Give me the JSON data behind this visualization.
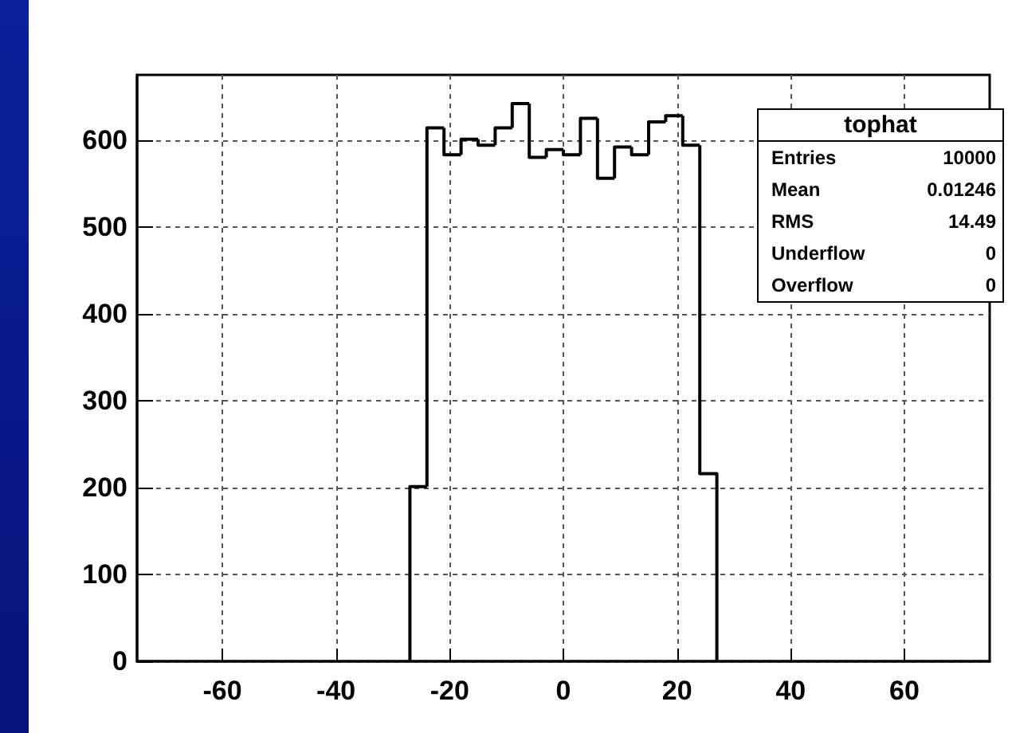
{
  "chart_data": {
    "type": "histogram",
    "title": "tophat",
    "bins": [
      -27,
      -24,
      -21,
      -18,
      -15,
      -12,
      -9,
      -6,
      -3,
      0,
      3,
      6,
      9,
      12,
      15,
      18,
      21,
      24,
      27
    ],
    "values": [
      201,
      614,
      583,
      601,
      594,
      614,
      642,
      580,
      589,
      583,
      625,
      556,
      592,
      583,
      621,
      628,
      594,
      216
    ],
    "color": "#000000",
    "xlim": [
      -75,
      75
    ],
    "xticks": [
      -60,
      -40,
      -20,
      0,
      20,
      40,
      60
    ],
    "ylim": [
      0,
      675
    ],
    "yticks": [
      0,
      100,
      200,
      300,
      400,
      500,
      600
    ],
    "grid": true,
    "annotations": [
      "Entries",
      "10000",
      "Mean",
      "0.01246",
      "RMS",
      "14.49",
      "Underflow",
      "0",
      "Overflow",
      "0"
    ]
  }
}
